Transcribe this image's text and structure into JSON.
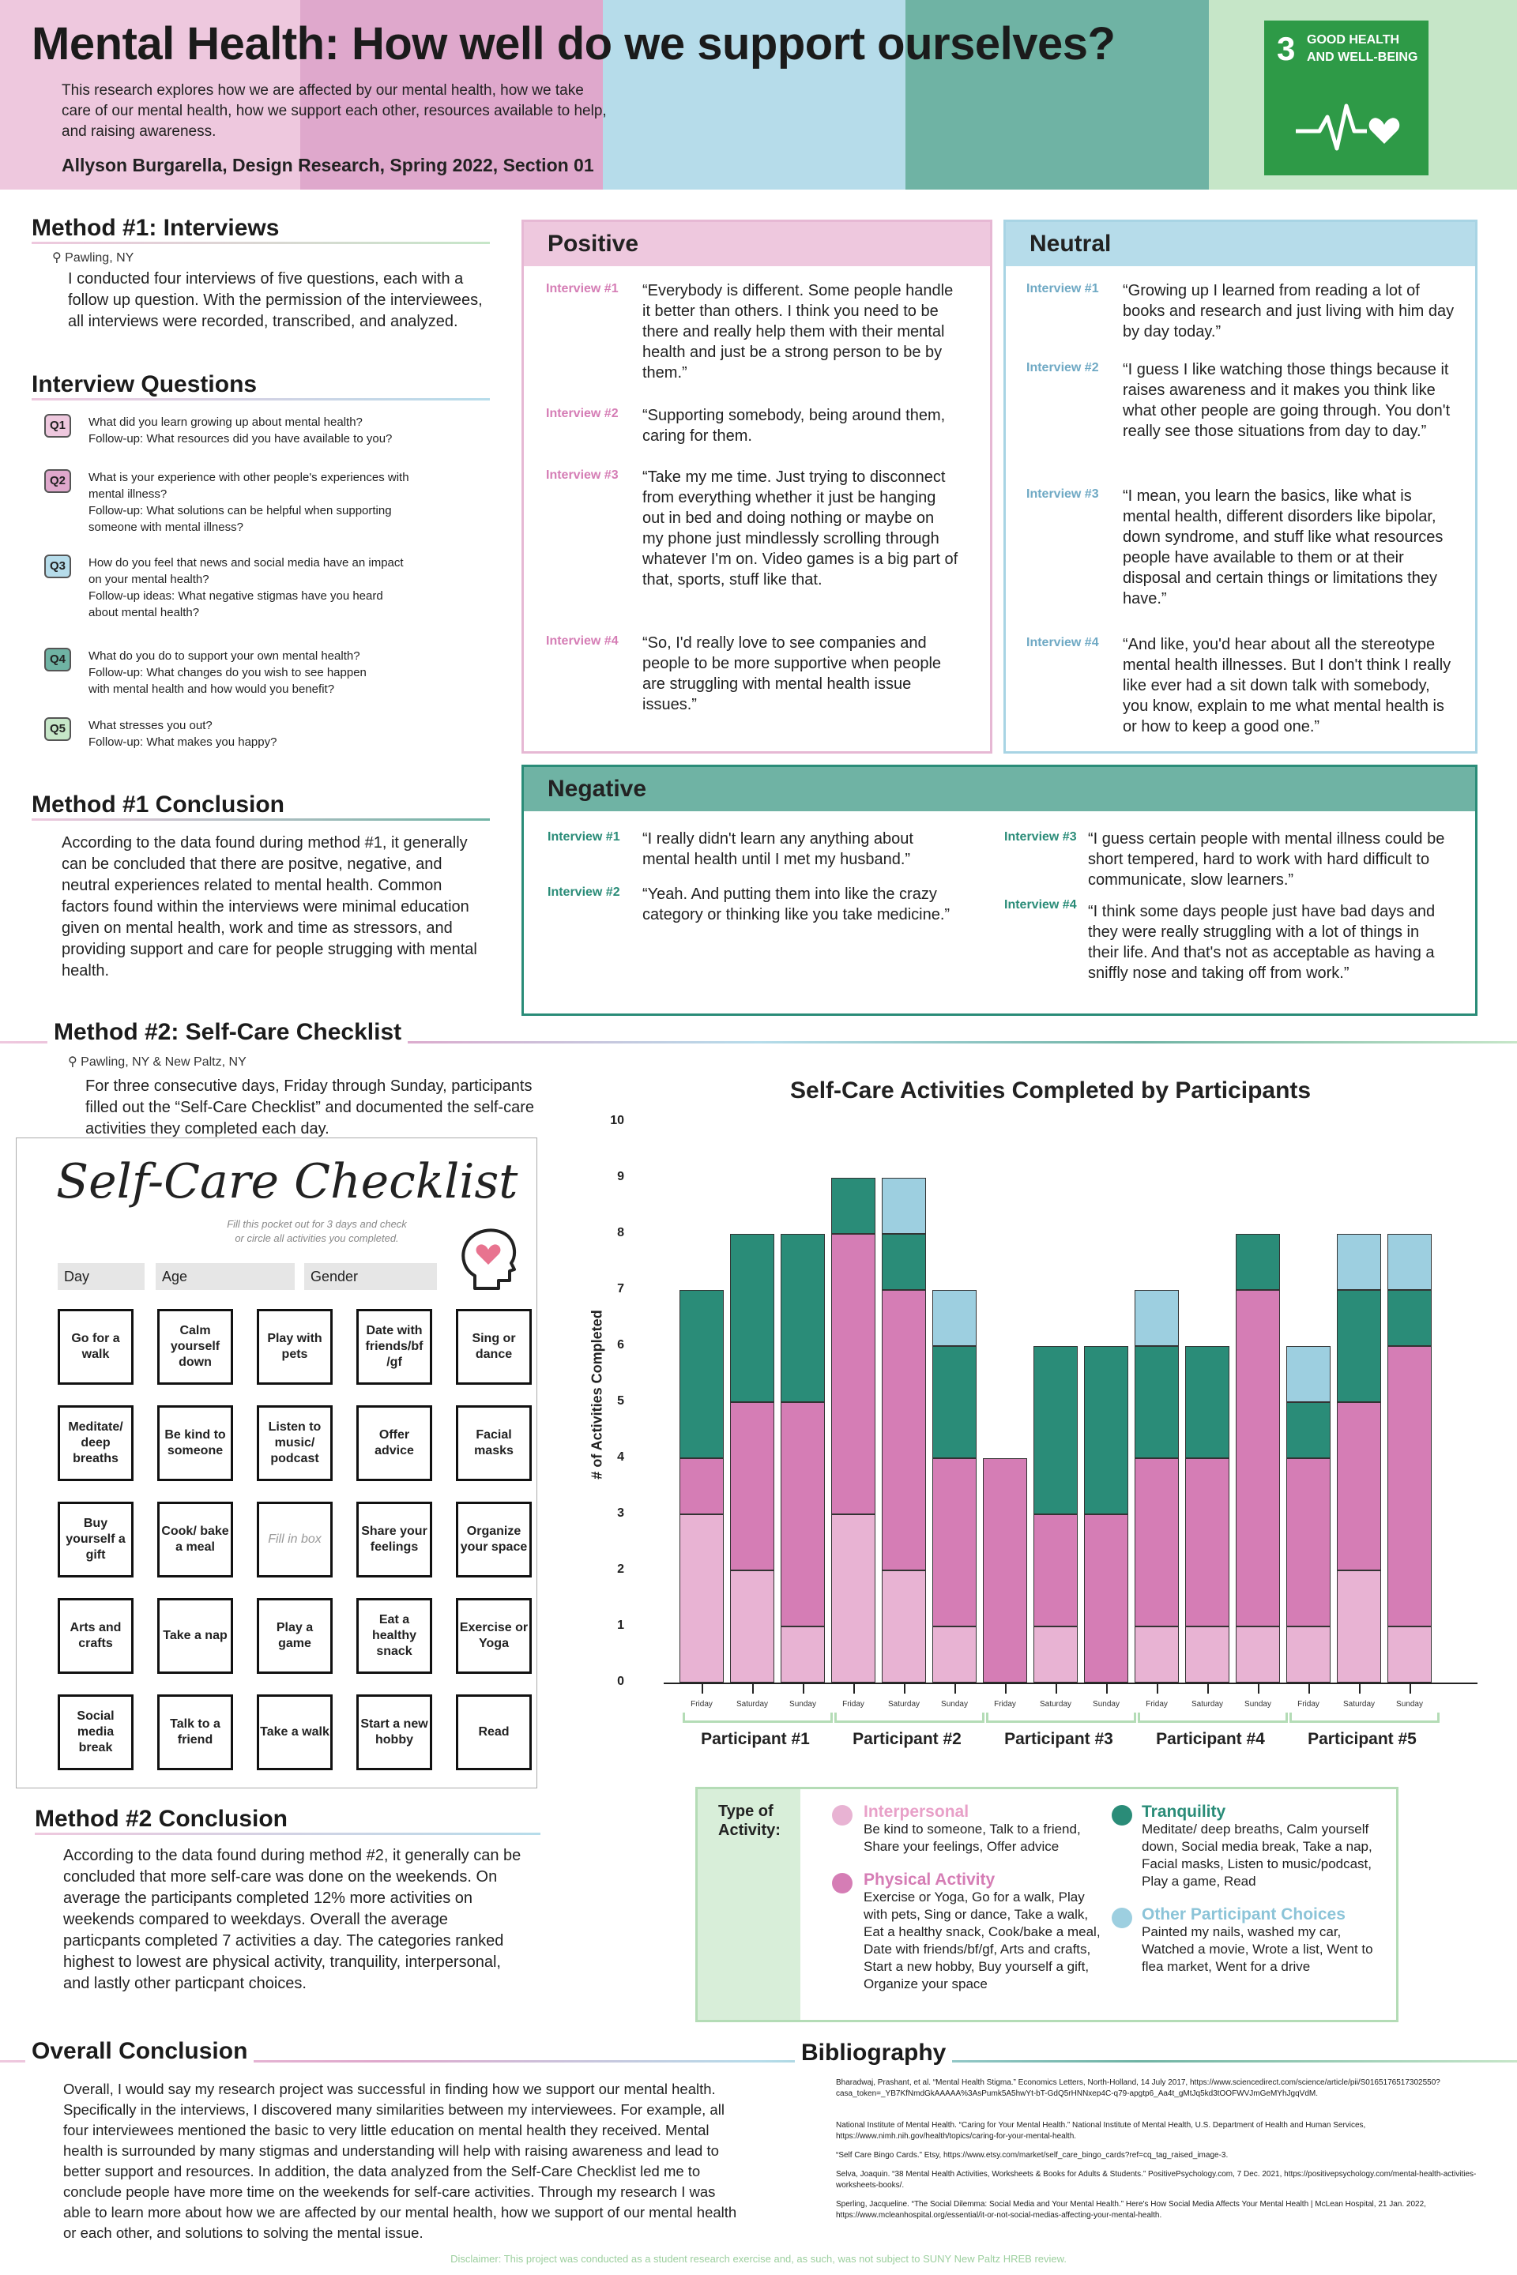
{
  "header": {
    "title": "Mental Health: How well do we support ourselves?",
    "intro": "This research explores how we are affected by our mental health, how we take care of our mental health, how we support each other, resources available to help, and raising awareness.",
    "author": "Allyson Burgarella, Design Research, Spring 2022, Section 01",
    "colors": [
      "#eec8de",
      "#dfa8cc",
      "#b6dcea",
      "#6fb3a4",
      "#c6e6c8"
    ],
    "sdg": {
      "number": "3",
      "line1": "GOOD HEALTH",
      "line2": "AND WELL-BEING",
      "icon": "heartbeat-heart-icon"
    }
  },
  "method1": {
    "title": "Method #1: Interviews",
    "location": "Pawling, NY",
    "text": "I conducted four interviews of five questions, each with a follow up question. With the permission of the interviewees, all interviews were recorded, transcribed, and analyzed."
  },
  "questions": {
    "title": "Interview Questions",
    "items": [
      {
        "badge": "Q1",
        "color": "#eec8de",
        "l1": "What did you learn growing up about mental health?",
        "l2": "Follow-up: What resources did you have available to you?",
        "l3": "",
        "l4": ""
      },
      {
        "badge": "Q2",
        "color": "#dfa8cc",
        "l1": "What is your experience with other people's experiences with",
        "l2": "mental illness?",
        "l3": "Follow-up: What solutions can be helpful when supporting",
        "l4": "someone with mental illness?"
      },
      {
        "badge": "Q3",
        "color": "#b6dcea",
        "l1": "How do you feel that news and social media have an impact",
        "l2": "on your mental health?",
        "l3": "Follow-up ideas: What negative stigmas have you heard",
        "l4": "about mental health?"
      },
      {
        "badge": "Q4",
        "color": "#6fb3a4",
        "l1": "What do you do to support your own mental health?",
        "l2": "Follow-up: What changes do you wish to see happen",
        "l3": "with mental health and how would you benefit?",
        "l4": ""
      },
      {
        "badge": "Q5",
        "color": "#c6e6c8",
        "l1": "What stresses you out?",
        "l2": "Follow-up: What makes you happy?",
        "l3": "",
        "l4": ""
      }
    ]
  },
  "conclusion1": {
    "title": "Method #1 Conclusion",
    "text": "According to the data found during method #1, it generally can be concluded that there are positve, negative, and neutral experiences related to mental health. Common factors found within the interviews were minimal education given on mental health, work and time as stressors, and providing support and care for people strugging with mental health."
  },
  "positive": {
    "title": "Positive",
    "items": [
      {
        "label": "Interview #1",
        "text": "“Everybody is different. Some people handle it better than others.  I think you need to be there and really help them with their mental health and just be a strong person to be by them.”"
      },
      {
        "label": "Interview #2",
        "text": "“Supporting somebody, being around them, caring for them."
      },
      {
        "label": "Interview #3",
        "text": "“Take my me time. Just trying to disconnect from everything whether it just be hanging out in bed and doing nothing or maybe on my phone just mindlessly scrolling through whatever  I'm on. Video games is a big part of that, sports, stuff like that."
      },
      {
        "label": "Interview #4",
        "text": "“So,  I'd really love to see companies and people to be more supportive when people are struggling with mental health issue issues.”"
      }
    ]
  },
  "neutral": {
    "title": "Neutral",
    "items": [
      {
        "label": "Interview #1",
        "text": "“Growing up  I learned from reading a lot of books and research and just living with him day by day today.”"
      },
      {
        "label": "Interview #2",
        "text": "“I guess  I like watching those things because it raises awareness and it makes you think like what other people are going through. You don't really see those situations from day to day.”"
      },
      {
        "label": "Interview #3",
        "text": "“I mean, you learn the basics, like what is mental health, different disorders like bipolar, down syndrome, and stuff like what resources people have available to them or at their disposal and certain things or limitations they have.”"
      },
      {
        "label": "Interview #4",
        "text": "“And like, you'd hear about all the stereotype mental health illnesses.  But  I don't think  I really like ever had a sit down talk with somebody, you know, explain to me what mental health is or how to keep a good one.”"
      }
    ]
  },
  "negative": {
    "title": "Negative",
    "items": [
      {
        "label": "Interview #1",
        "text": "“I really didn't learn any anything about mental health until  I met my husband.”"
      },
      {
        "label": "Interview #2",
        "text": "“Yeah. And putting them into like the crazy category or thinking like you take medicine.”"
      },
      {
        "label": "Interview #3",
        "text": "“I guess certain people with mental illness could be short tempered, hard to work with hard difficult to communicate, slow learners.”"
      },
      {
        "label": "Interview #4",
        "text": "“I think some days people just have bad days and they were really struggling with a lot of things in their life. And that's not as acceptable as having a sniffly nose and taking off from work.”"
      }
    ]
  },
  "method2": {
    "title": "Method #2: Self-Care Checklist",
    "location": "Pawling, NY & New Paltz, NY",
    "text": "For three consecutive days,  Friday through Sunday, participants filled out the “Self-Care Checklist” and documented the self-care activities they completed each day."
  },
  "checklist": {
    "title": "Self-Care Checklist",
    "subtitle1": "Fill this pocket out for 3 days and check",
    "subtitle2": "or circle all activities you completed.",
    "fields": [
      "Day",
      "Age",
      "Gender"
    ],
    "icon": "head-heart-icon",
    "cells": [
      "Go for a walk",
      "Calm yourself down",
      "Play with pets",
      "Date with friends/bf /gf",
      "Sing or dance",
      "Meditate/ deep breaths",
      "Be kind to someone",
      "Listen to music/ podcast",
      "Offer advice",
      "Facial masks",
      "Buy yourself a gift",
      "Cook/ bake a meal",
      "Fill in box",
      "Share your feelings",
      "Organize your space",
      "Arts and crafts",
      "Take a nap",
      "Play a game",
      "Eat a healthy snack",
      "Exercise or Yoga",
      "Social media break",
      "Talk to a friend",
      "Take a walk",
      "Start a new hobby",
      "Read"
    ]
  },
  "conclusion2": {
    "title": "Method #2 Conclusion",
    "text": "According to the data found during method #2, it generally can be concluded that more self-care was done on the weekends. On average the participants completed 12% more activities on weekends compared to weekdays. Overall the average particpants completed 7 activities a day. The categories ranked highest to lowest are physical activity, tranquility, interpersonal, and lastly other particpant choices."
  },
  "chart_data": {
    "type": "bar",
    "stacked": true,
    "title": "Self-Care Activities Completed by Participants",
    "ylabel": "# of Activities Completed",
    "ylim": [
      0,
      10
    ],
    "yticks": [
      "0",
      "1",
      "2",
      "3",
      "4",
      "5",
      "6",
      "7",
      "8",
      "9",
      "10"
    ],
    "groups": [
      "Participant #1",
      "Participant #2",
      "Participant #3",
      "Participant #4",
      "Participant #5"
    ],
    "days": [
      "Friday",
      "Saturday",
      "Sunday"
    ],
    "categories": [
      "P1 Friday",
      "P1 Saturday",
      "P1 Sunday",
      "P2 Friday",
      "P2 Saturday",
      "P2 Sunday",
      "P3 Friday",
      "P3 Saturday",
      "P3 Sunday",
      "P4 Friday",
      "P4 Saturday",
      "P4 Sunday",
      "P5 Friday",
      "P5 Saturday",
      "P5 Sunday"
    ],
    "series": [
      {
        "name": "Interpersonal",
        "color": "#e8b3d3",
        "values": [
          3,
          2,
          1,
          3,
          2,
          1,
          0,
          1,
          0,
          1,
          1,
          1,
          1,
          2,
          1
        ]
      },
      {
        "name": "Physical Activity",
        "color": "#d57db5",
        "values": [
          1,
          3,
          4,
          5,
          5,
          3,
          4,
          2,
          3,
          3,
          3,
          6,
          3,
          3,
          5
        ]
      },
      {
        "name": "Tranquility",
        "color": "#2a8c78",
        "values": [
          3,
          3,
          3,
          1,
          1,
          2,
          0,
          3,
          3,
          2,
          2,
          1,
          1,
          2,
          1
        ]
      },
      {
        "name": "Other Participant Choices",
        "color": "#9dcfe0",
        "values": [
          0,
          0,
          0,
          0,
          1,
          1,
          0,
          0,
          0,
          1,
          0,
          0,
          1,
          1,
          1
        ]
      }
    ]
  },
  "legend": {
    "type_label1": "Type of",
    "type_label2": "Activity:",
    "items": [
      {
        "name": "Interpersonal",
        "color": "#e8b3d3",
        "desc": "Be kind to someone, Talk to a friend, Share your feelings, Offer advice"
      },
      {
        "name": "Physical Activity",
        "color": "#d57db5",
        "desc": "Exercise or Yoga, Go for a walk,  Play with pets, Sing or dance, Take a walk, Eat a healthy snack, Cook/bake a meal,  Date with friends/bf/gf, Arts and crafts, Start a new hobby,  Buy yourself a gift, Organize your space"
      },
      {
        "name": "Tranquility",
        "color": "#2a8c78",
        "desc": "Meditate/ deep breaths, Calm yourself down, Social media break, Take a nap,  Facial masks,  Listen to music/podcast,  Play a game,  Read"
      },
      {
        "name": "Other Participant Choices",
        "color": "#9dcfe0",
        "desc": "Painted my nails, washed my car, Watched a movie, Wrote a list, Went to flea market, Went for a drive"
      }
    ]
  },
  "overall": {
    "title": "Overall Conclusion",
    "text": "Overall,  I would say my research project was successful in finding how we support our mental health. Specifically in the interviews,  I discovered many similarities between my interviewees.  For example, all four interviewees mentioned the basic to very little education on mental health they received.  Mental health is surrounded by many stigmas  and understanding will help with raising awareness and lead to better support and resources.  In addition, the data analyzed from the Self-Care Checklist led me to conclude people have more time on the weekends for self-care activities.  Through my research  I was able to learn more about how we are affected by our mental health, how we support of our mental health or each other, and solutions to solving the mental issue."
  },
  "bibliography": {
    "title": "Bibliography",
    "items": [
      "Bharadwaj, Prashant, et al. “Mental Health Stigma.” Economics Letters, North-Holland, 14 July 2017, https://www.sciencedirect.com/science/article/pii/S0165176517302550?casa_token=_YB7KfNmdGkAAAAA%3AsPumk5A5hwYt-bT-GdQ5rHNNxep4C-q79-apgtp6_Aa4t_gMtJq5kd3tOOFWVJmGeMYhJgqVdM.",
      "National Institute of Mental Health. “Caring for Your Mental Health.” National Institute of Mental Health, U.S. Department of Health and Human Services, https://www.nimh.nih.gov/health/topics/caring-for-your-mental-health.",
      "“Self Care Bingo Cards.” Etsy, https://www.etsy.com/market/self_care_bingo_cards?ref=cq_tag_raised_image-3.",
      "Selva, Joaquin. “38 Mental Health Activities, Worksheets & Books for Adults & Students.” PositivePsychology.com, 7 Dec. 2021, https://positivepsychology.com/mental-health-activities-worksheets-books/.",
      "Sperling, Jacqueline. “The Social Dilemma: Social Media and Your Mental Health.” Here's How Social Media Affects Your Mental Health | McLean Hospital, 21 Jan. 2022, https://www.mcleanhospital.org/essential/it-or-not-social-medias-affecting-your-mental-health."
    ]
  },
  "disclaimer": "Disclaimer: This project was conducted as a student research exercise and, as such, was not subject to SUNY New Paltz HREB review."
}
